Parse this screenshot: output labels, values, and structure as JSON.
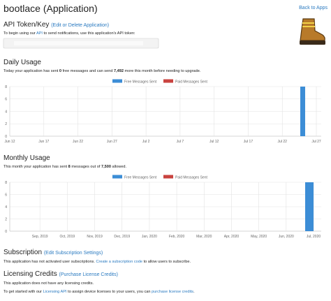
{
  "header": {
    "title": "bootlace (Application)",
    "back_link": "Back to Apps"
  },
  "api_token": {
    "heading": "API Token/Key",
    "link": "(Edit or Delete Application)",
    "intro": [
      "To begin using our ",
      "API",
      " to send notifications, use this application's API token:"
    ]
  },
  "daily_usage": {
    "heading": "Daily Usage",
    "summary": [
      "Today your application has sent ",
      "0",
      " free messages and can send ",
      "7,492",
      " more this month before needing to upgrade."
    ]
  },
  "monthly_usage": {
    "heading": "Monthly Usage",
    "summary": [
      "This month your application has sent ",
      "8",
      " messages out of ",
      "7,500",
      " allowed."
    ]
  },
  "subscription": {
    "heading": "Subscription",
    "link": "(Edit Subscription Settings)",
    "text": [
      "This application has not activated user subscriptions. ",
      "Create a subscription code",
      " to allow users to subscribe."
    ]
  },
  "licensing": {
    "heading": "Licensing Credits",
    "link": "(Purchase License Credits)",
    "text1": "This application does not have any licensing credits.",
    "text2": [
      "To get started with our ",
      "Licensing API",
      " to assign device licenses to your users, you can ",
      "purchase license credits",
      "."
    ]
  },
  "chart_data": [
    {
      "type": "bar",
      "categories": [
        "Jun 12",
        null,
        null,
        null,
        null,
        "Jun 17",
        null,
        null,
        null,
        null,
        "Jun 22",
        null,
        null,
        null,
        null,
        "Jun 27",
        null,
        null,
        null,
        null,
        "Jul 2",
        null,
        null,
        null,
        null,
        "Jul 7",
        null,
        null,
        null,
        null,
        "Jul 12",
        null,
        null,
        null,
        null,
        "Jul 17",
        null,
        null,
        null,
        null,
        "Jul 22",
        null,
        null,
        null,
        null,
        "Jul 27"
      ],
      "series": [
        {
          "name": "Free Messages Sent",
          "color": "#3c8dd6",
          "values": [
            0,
            0,
            0,
            0,
            0,
            0,
            0,
            0,
            0,
            0,
            0,
            0,
            0,
            0,
            0,
            0,
            0,
            0,
            0,
            0,
            0,
            0,
            0,
            0,
            0,
            0,
            0,
            0,
            0,
            0,
            0,
            0,
            0,
            0,
            0,
            0,
            0,
            0,
            0,
            0,
            0,
            0,
            0,
            8,
            0,
            0
          ]
        },
        {
          "name": "Paid Messages Sent",
          "color": "#c9433f",
          "values": [
            0,
            0,
            0,
            0,
            0,
            0,
            0,
            0,
            0,
            0,
            0,
            0,
            0,
            0,
            0,
            0,
            0,
            0,
            0,
            0,
            0,
            0,
            0,
            0,
            0,
            0,
            0,
            0,
            0,
            0,
            0,
            0,
            0,
            0,
            0,
            0,
            0,
            0,
            0,
            0,
            0,
            0,
            0,
            0,
            0,
            0
          ]
        }
      ],
      "ylim": [
        0,
        8
      ],
      "yticks": [
        0,
        2,
        4,
        6,
        8
      ],
      "grid": true,
      "legend": "top"
    },
    {
      "type": "bar",
      "categories": [
        null,
        "Sep, 2019",
        "Oct, 2019",
        "Nov, 2019",
        "Dec, 2019",
        "Jan, 2020",
        "Feb, 2020",
        "Mar, 2020",
        "Apr, 2020",
        "May, 2020",
        "Jun, 2020",
        "Jul, 2020"
      ],
      "series": [
        {
          "name": "Free Messages Sent",
          "color": "#3c8dd6",
          "values": [
            0,
            0,
            0,
            0,
            0,
            0,
            0,
            0,
            0,
            0,
            0,
            8
          ]
        },
        {
          "name": "Paid Messages Sent",
          "color": "#c9433f",
          "values": [
            0,
            0,
            0,
            0,
            0,
            0,
            0,
            0,
            0,
            0,
            0,
            0
          ]
        }
      ],
      "ylim": [
        0,
        8
      ],
      "yticks": [
        0,
        2,
        4,
        6,
        8
      ],
      "grid": true,
      "legend": "top"
    }
  ]
}
